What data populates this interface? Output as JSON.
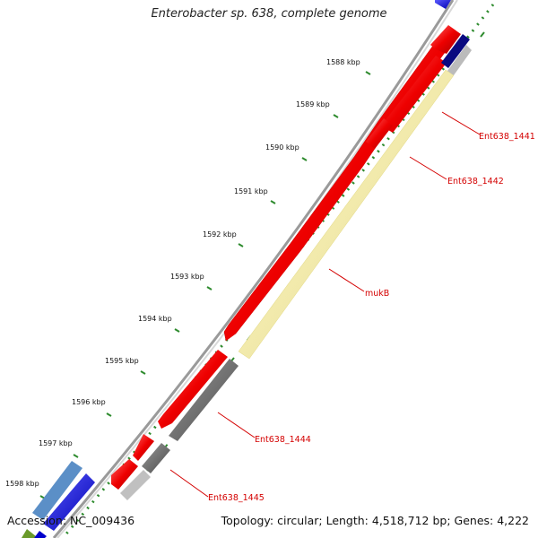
{
  "title": "Enterobacter sp. 638, complete genome",
  "accession": "Accession: NC_009436",
  "summary": "Topology: circular; Length: 4,518,712 bp; Genes: 4,222",
  "ticks": [
    "1588 kbp",
    "1589 kbp",
    "1590 kbp",
    "1591 kbp",
    "1592 kbp",
    "1593 kbp",
    "1594 kbp",
    "1595 kbp",
    "1596 kbp",
    "1597 kbp",
    "1598 kbp"
  ],
  "gene_labels": [
    "Ent638_1441",
    "Ent638_1442",
    "mukB",
    "Ent638_1444",
    "Ent638_1445"
  ],
  "colors": {
    "backbone": "#8c8c8c",
    "tick": "#2e8b2e",
    "cds_forward": "#ff0000",
    "gene_track": "#f2eaa0",
    "gray_track": "#6e6e6e",
    "label": "#d40000"
  }
}
